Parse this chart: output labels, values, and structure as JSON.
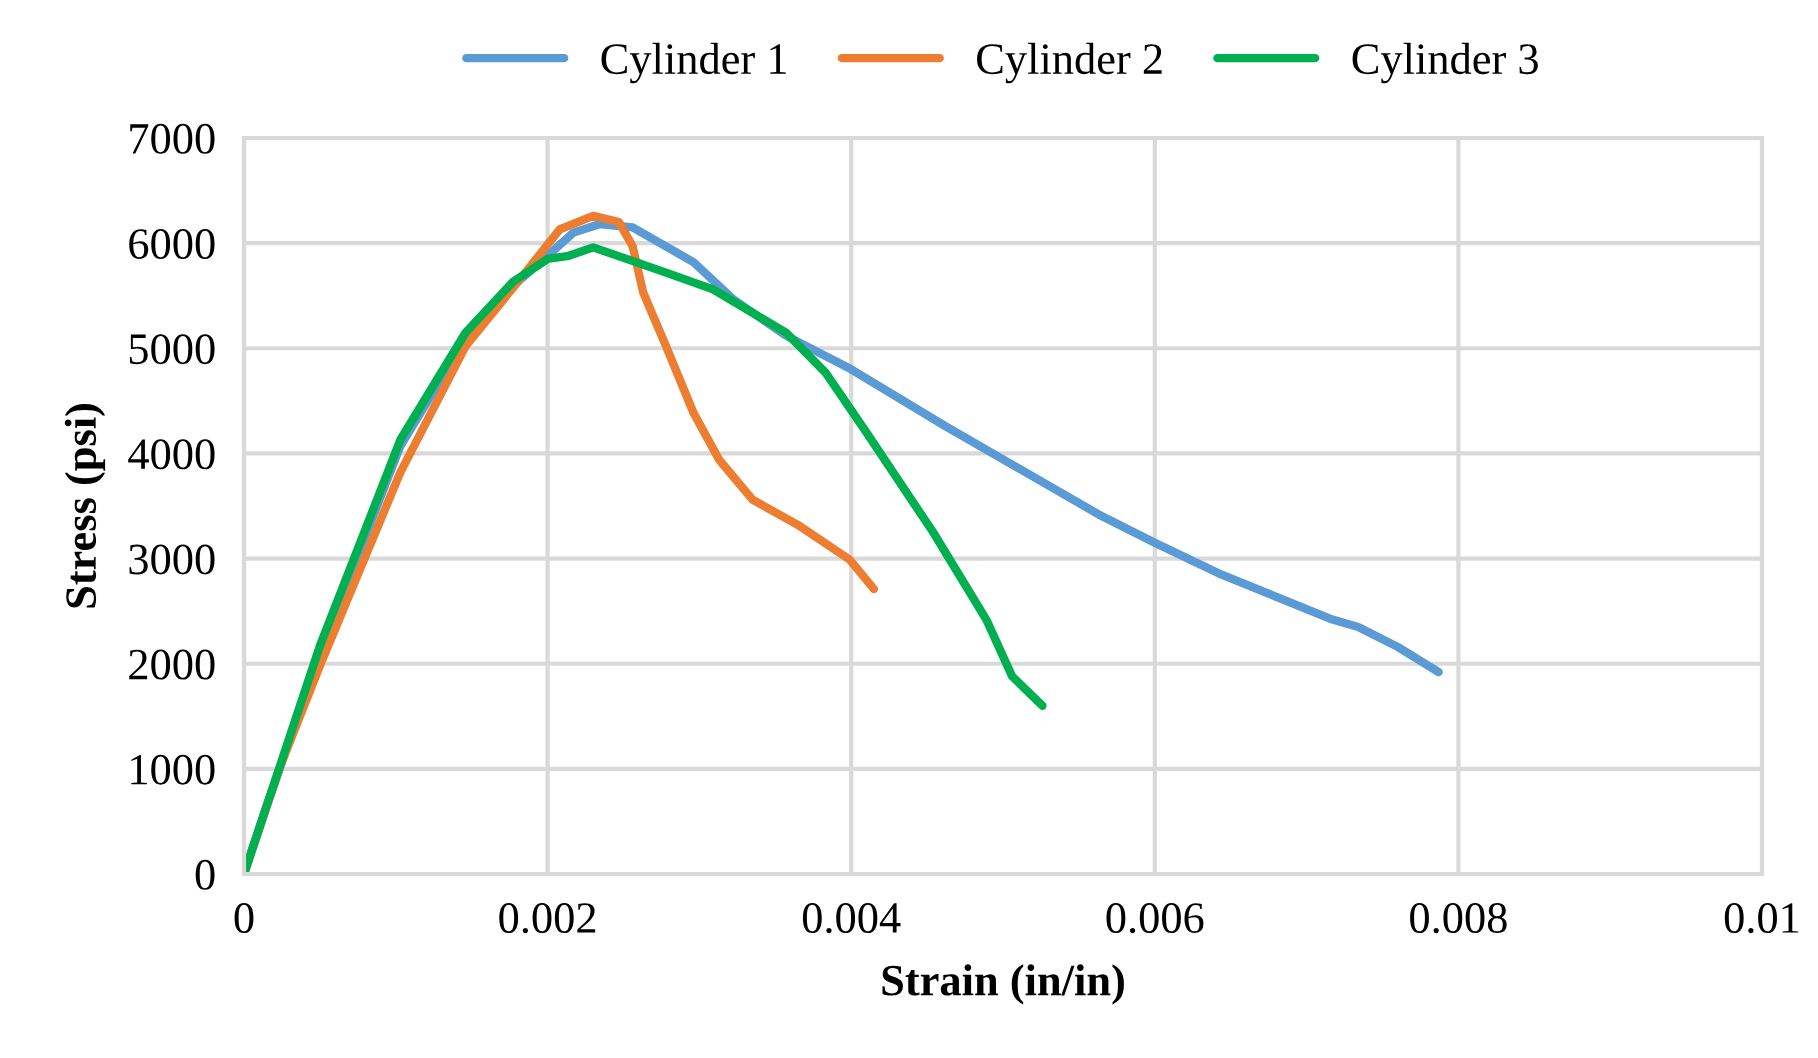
{
  "chart_data": {
    "type": "line",
    "xlabel": "Strain (in/in)",
    "ylabel": "Stress (psi)",
    "xlim": [
      0,
      0.01
    ],
    "xticks": [
      0,
      0.002,
      0.004,
      0.006,
      0.008,
      0.01
    ],
    "ylim": [
      0,
      7000
    ],
    "yticks": [
      0,
      1000,
      2000,
      3000,
      4000,
      5000,
      6000,
      7000
    ],
    "grid": true,
    "legend": "top",
    "marker": "none",
    "line_style": "solid",
    "series": [
      {
        "name": "Cylinder 1",
        "color": "#5b9bd5",
        "x": [
          0,
          0.00015,
          0.0005,
          0.00103,
          0.00146,
          0.00177,
          0.002,
          0.00217,
          0.00234,
          0.00256,
          0.00296,
          0.00322,
          0.00357,
          0.004,
          0.00462,
          0.00563,
          0.006,
          0.00642,
          0.00717,
          0.00734,
          0.0076,
          0.00787
        ],
        "values": [
          0,
          650,
          2100,
          4070,
          5090,
          5590,
          5880,
          6100,
          6180,
          6150,
          5820,
          5470,
          5120,
          4800,
          4260,
          3420,
          3150,
          2860,
          2420,
          2350,
          2160,
          1920
        ]
      },
      {
        "name": "Cylinder 2",
        "color": "#ed7d31",
        "x": [
          0,
          0.00024,
          0.0005,
          0.00103,
          0.00146,
          0.00182,
          0.00208,
          0.0023,
          0.00247,
          0.00256,
          0.00263,
          0.00278,
          0.00296,
          0.00313,
          0.00335,
          0.00366,
          0.00399,
          0.00415
        ],
        "values": [
          0,
          1030,
          1980,
          3820,
          5020,
          5660,
          6130,
          6260,
          6200,
          5970,
          5530,
          5020,
          4390,
          3940,
          3560,
          3310,
          2990,
          2710
        ]
      },
      {
        "name": "Cylinder 3",
        "color": "#00b050",
        "x": [
          0,
          0.00015,
          0.0005,
          0.00103,
          0.00146,
          0.00177,
          0.002,
          0.00214,
          0.0023,
          0.00252,
          0.00278,
          0.00309,
          0.00357,
          0.00383,
          0.0041,
          0.00454,
          0.00489,
          0.00506,
          0.00526
        ],
        "values": [
          0,
          650,
          2170,
          4130,
          5150,
          5630,
          5850,
          5880,
          5960,
          5850,
          5720,
          5560,
          5150,
          4770,
          4200,
          3250,
          2420,
          1880,
          1600
        ]
      }
    ]
  }
}
